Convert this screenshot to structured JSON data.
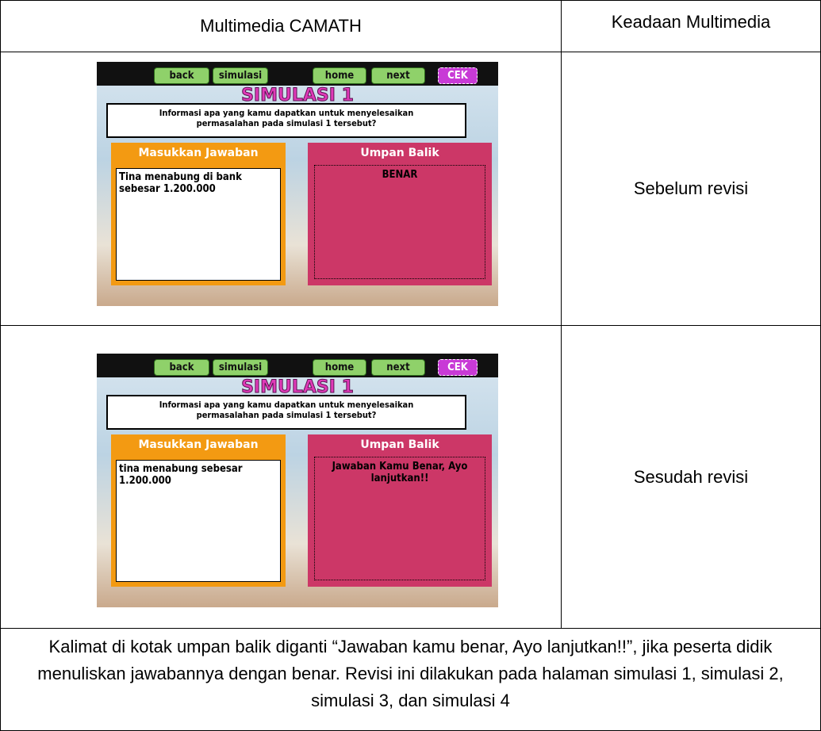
{
  "table": {
    "header": [
      "Multimedia CAMATH",
      "Keadaan Multimedia"
    ],
    "rows": [
      {
        "screen": {
          "buttons": [
            "back",
            "simulasi",
            "home",
            "next",
            "CEK"
          ],
          "title": "SIMULASI 1",
          "question": "Informasi apa yang kamu dapatkan untuk menyelesaikan permasalahan pada simulasi 1 tersebut?",
          "answer_label": "Masukkan Jawaban",
          "answer": "Tina menabung di bank sebesar 1.200.000",
          "feedback_label": "Umpan Balik",
          "feedback": "BENAR"
        },
        "state": "Sebelum revisi"
      },
      {
        "screen": {
          "buttons": [
            "back",
            "simulasi",
            "home",
            "next",
            "CEK"
          ],
          "title": "SIMULASI 1",
          "question": "Informasi apa yang kamu dapatkan untuk menyelesaikan permasalahan pada simulasi 1 tersebut?",
          "answer_label": "Masukkan Jawaban",
          "answer": "tina menabung sebesar 1.200.000",
          "feedback_label": "Umpan Balik",
          "feedback": "Jawaban Kamu Benar, Ayo lanjutkan!!"
        },
        "state": "Sesudah revisi"
      }
    ],
    "note": "Kalimat di kotak umpan balik diganti “Jawaban kamu benar, Ayo lanjutkan!!”, jika peserta didik menuliskan jawabannya dengan benar. Revisi ini dilakukan pada halaman simulasi 1, simulasi 2, simulasi 3, dan simulasi 4"
  }
}
